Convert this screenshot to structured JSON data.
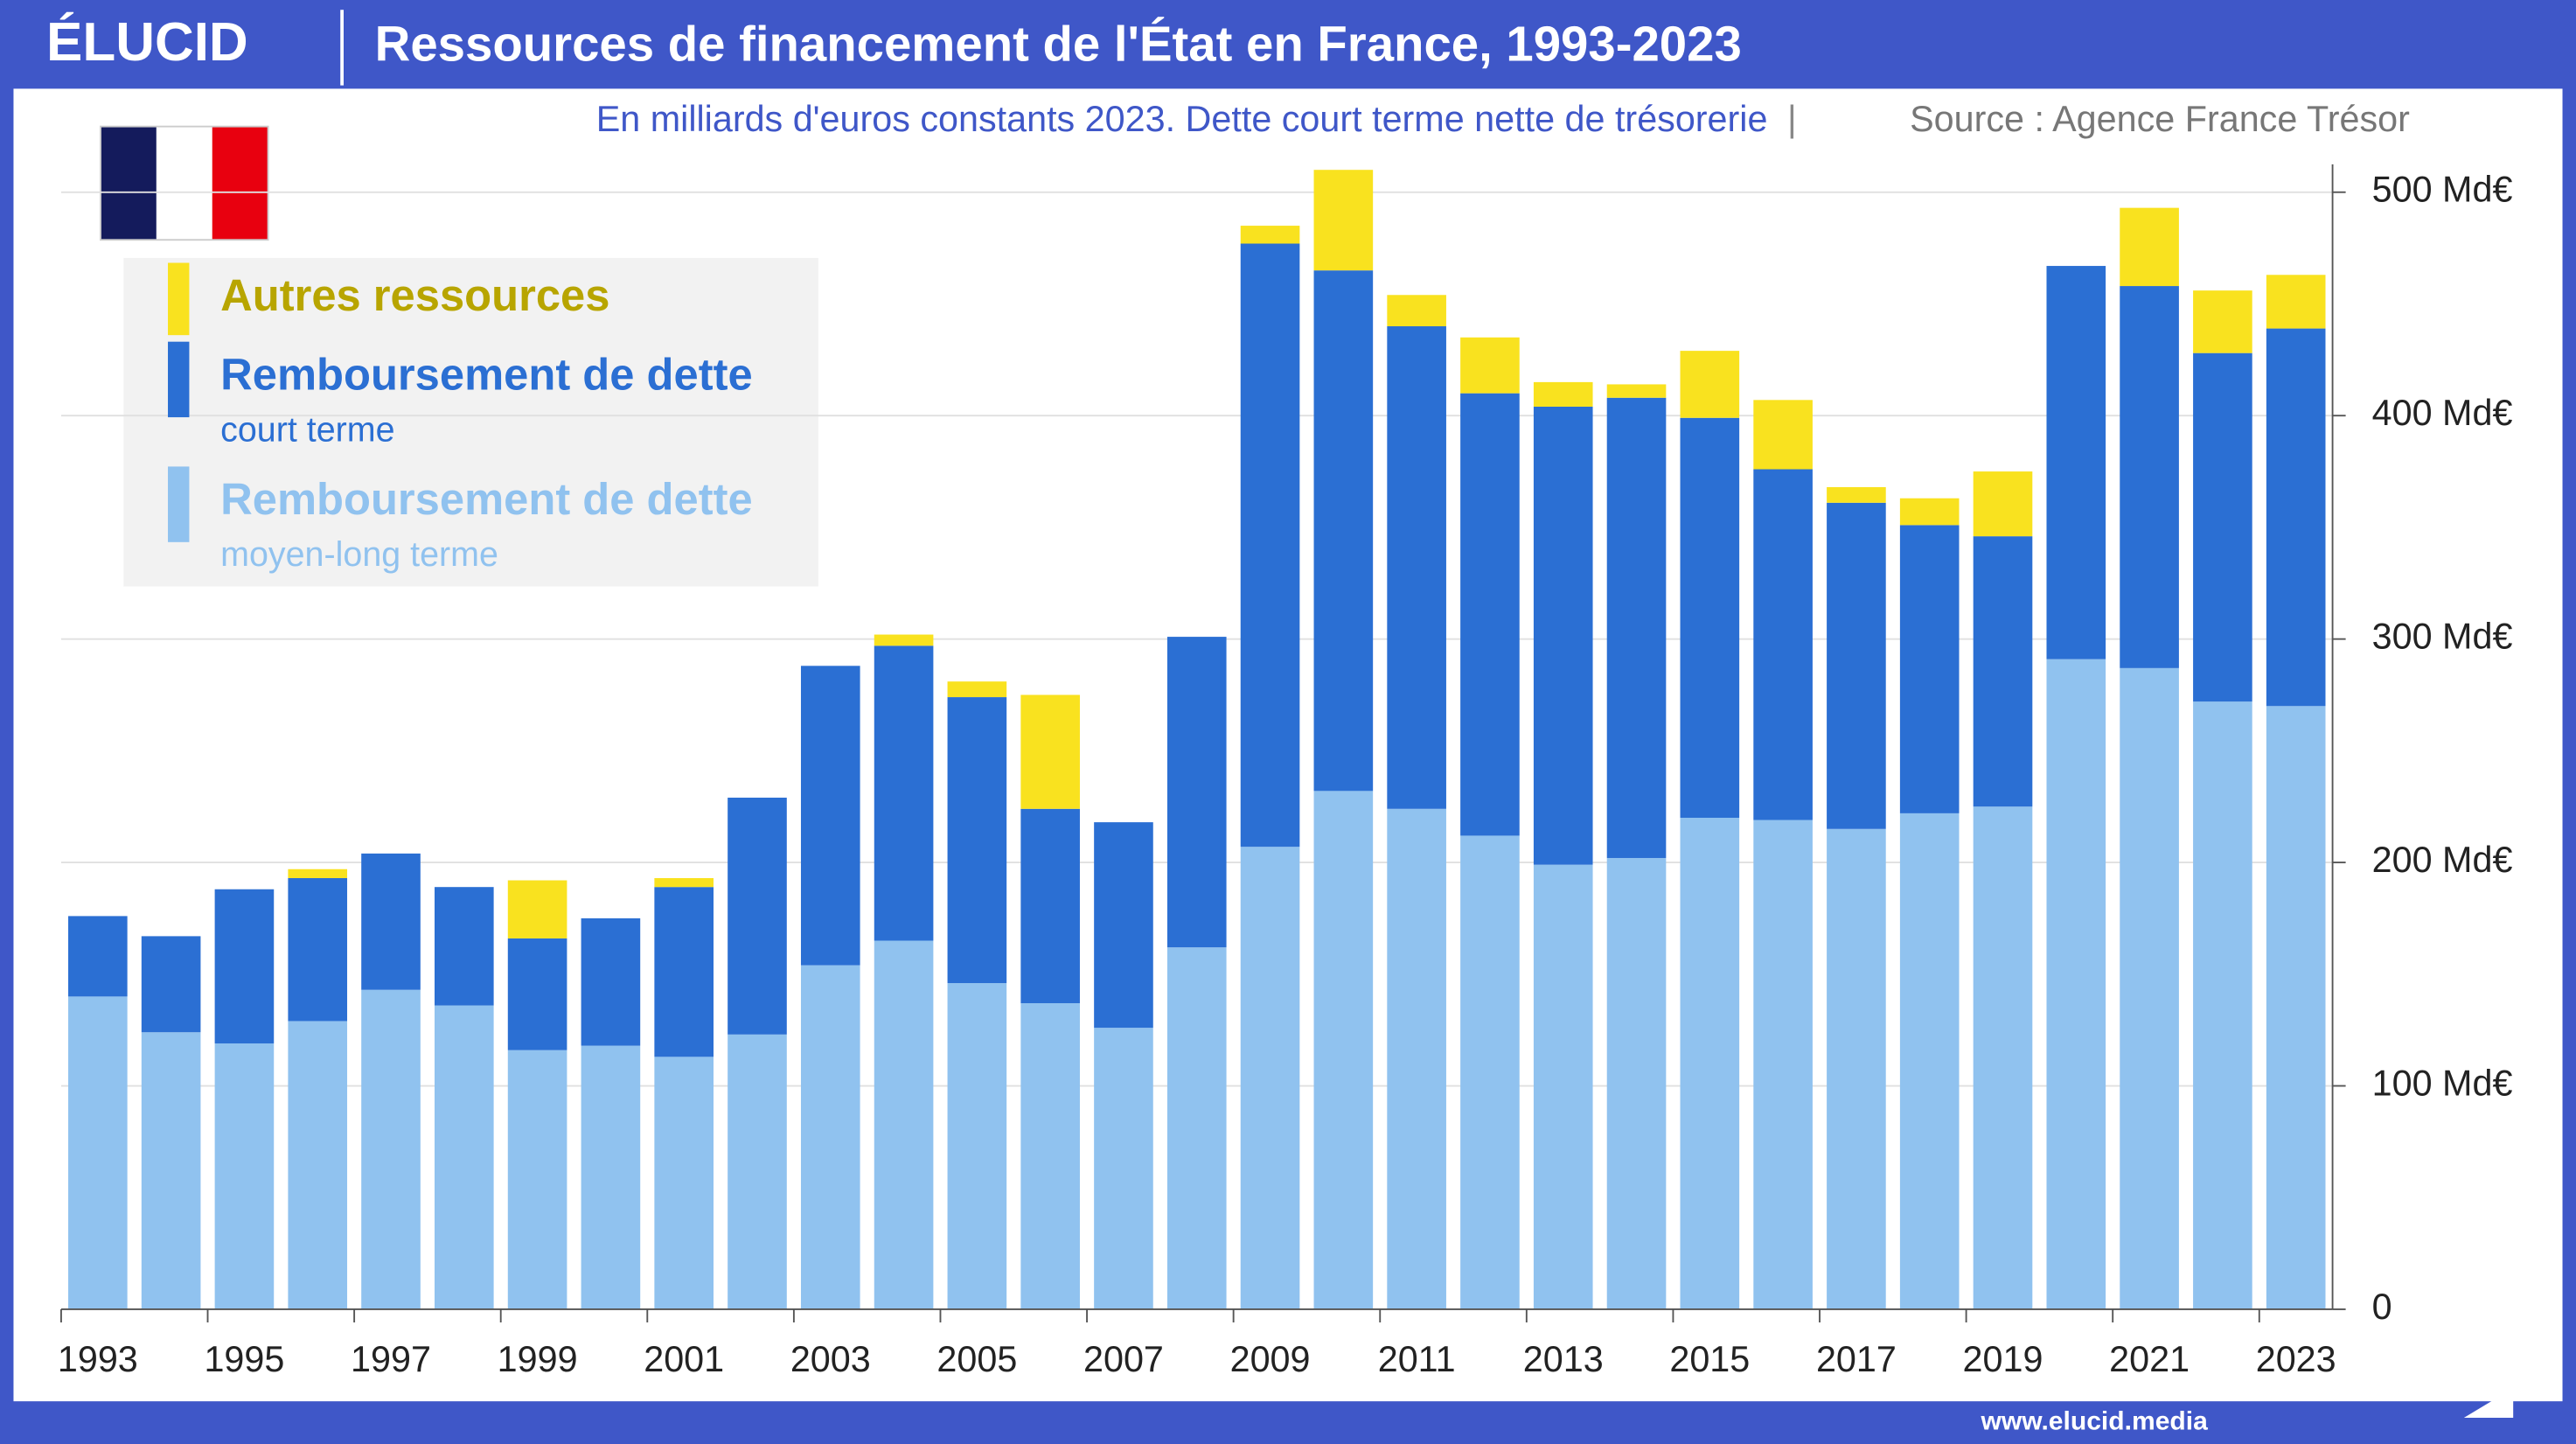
{
  "brand": "ÉLUCID",
  "footer": "www.elucid.media",
  "chart_data": {
    "type": "stacked-bar",
    "title": "Ressources de financement de l'État en France, 1993-2023",
    "subtitle": "En milliards d'euros constants 2023. Dette court terme nette de trésorerie",
    "source": "Source : Agence France Trésor",
    "categories": [
      "1993",
      null,
      "1995",
      null,
      "1997",
      null,
      "1999",
      null,
      "2001",
      null,
      "2003",
      null,
      "2005",
      null,
      "2007",
      null,
      "2009",
      null,
      "2011",
      null,
      "2013",
      null,
      "2015",
      null,
      "2017",
      null,
      "2019",
      null,
      "2021",
      null,
      "2023"
    ],
    "series": [
      {
        "name": "Remboursement de dette",
        "detail": "moyen-long terme",
        "color": "#90c2ef",
        "values": [
          140,
          124,
          119,
          129,
          143,
          136,
          116,
          118,
          113,
          123,
          154,
          165,
          146,
          137,
          126,
          162,
          207,
          232,
          224,
          212,
          199,
          202,
          220,
          219,
          215,
          222,
          225,
          291,
          287,
          272,
          270
        ]
      },
      {
        "name": "Remboursement de dette",
        "detail": "court terme",
        "color": "#2b6fd3",
        "values": [
          36,
          43,
          69,
          64,
          61,
          53,
          50,
          57,
          76,
          106,
          134,
          132,
          128,
          87,
          92,
          139,
          270,
          233,
          216,
          198,
          205,
          206,
          179,
          157,
          146,
          129,
          121,
          176,
          171,
          156,
          169
        ]
      },
      {
        "name": "Autres ressources",
        "color": "#f9e21f",
        "values": [
          0,
          0,
          0,
          4,
          0,
          0,
          26,
          0,
          4,
          0,
          0,
          5,
          7,
          51,
          0,
          0,
          8,
          45,
          14,
          25,
          11,
          6,
          30,
          31,
          7,
          12,
          29,
          0,
          35,
          28,
          24
        ]
      }
    ],
    "ylim": [
      0,
      500
    ],
    "yticks": [
      0,
      {
        "value": 100,
        "label": "100 Md€"
      },
      {
        "value": 200,
        "label": "200 Md€"
      },
      {
        "value": 300,
        "label": "300 Md€"
      },
      {
        "value": 400,
        "label": "400 Md€"
      },
      {
        "value": 500,
        "label": "500 Md€"
      }
    ],
    "grid": true
  }
}
